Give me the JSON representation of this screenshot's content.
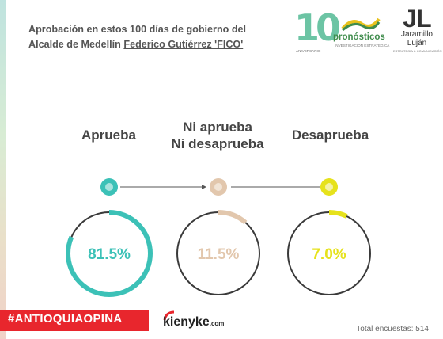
{
  "title": {
    "line1": "Aprobación en estos 100 días de gobierno del",
    "line2_prefix": "Alcalde de Medellín ",
    "line2_highlight": "Federico Gutiérrez 'FICO'"
  },
  "logos": {
    "aniversario": {
      "number": "10",
      "subtitle": "ANIVERSARIO"
    },
    "pronosticos": {
      "word": "pronósticos",
      "subtitle": "INVESTIGACIÓN ESTRATÉGICA"
    },
    "jaramillo": {
      "initials": "JL",
      "name_line1": "Jaramillo",
      "name_line2": "Luján",
      "subtitle": "ESTRATEGIA & COMUNICACIÓN"
    }
  },
  "categories": [
    {
      "label_lines": [
        "Aprueba"
      ],
      "color": "#3cc1b7",
      "light": "#a8e3de"
    },
    {
      "label_lines": [
        "Ni aprueba",
        "Ni desaprueba"
      ],
      "color": "#e2c7ad",
      "light": "#f1e4d6"
    },
    {
      "label_lines": [
        "Desaprueba"
      ],
      "color": "#e6e21c",
      "light": "#f4f2a6"
    }
  ],
  "chart_data": {
    "type": "pie",
    "categories": [
      "Aprueba",
      "Ni aprueba Ni desaprueba",
      "Desaprueba"
    ],
    "values": [
      81.5,
      11.5,
      7.0
    ],
    "value_labels": [
      "81.5%",
      "11.5%",
      "7.0%"
    ],
    "unit": "%"
  },
  "footer": {
    "hashtag": "#ANTIOQUIAOPINA",
    "brand": "kienyke",
    "brand_domain": ".com",
    "total": "Total encuestas: 514"
  }
}
